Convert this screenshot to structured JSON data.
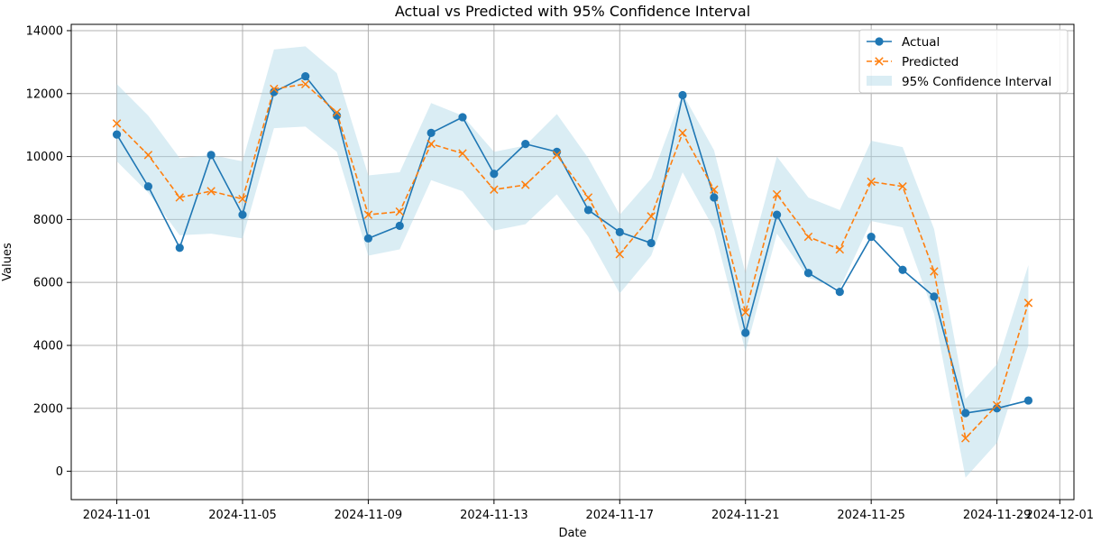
{
  "chart_data": {
    "type": "line",
    "title": "Actual vs Predicted with 95% Confidence Interval",
    "xlabel": "Date",
    "ylabel": "Values",
    "x": [
      "2024-11-01",
      "2024-11-02",
      "2024-11-03",
      "2024-11-04",
      "2024-11-05",
      "2024-11-06",
      "2024-11-07",
      "2024-11-08",
      "2024-11-09",
      "2024-11-10",
      "2024-11-11",
      "2024-11-12",
      "2024-11-13",
      "2024-11-14",
      "2024-11-15",
      "2024-11-16",
      "2024-11-17",
      "2024-11-18",
      "2024-11-19",
      "2024-11-20",
      "2024-11-21",
      "2024-11-22",
      "2024-11-23",
      "2024-11-24",
      "2024-11-25",
      "2024-11-26",
      "2024-11-27",
      "2024-11-28",
      "2024-11-29",
      "2024-11-30"
    ],
    "x_ticks": [
      "2024-11-01",
      "2024-11-05",
      "2024-11-09",
      "2024-11-13",
      "2024-11-17",
      "2024-11-21",
      "2024-11-25",
      "2024-11-29",
      "2024-12-01"
    ],
    "ylim": [
      -900,
      14200
    ],
    "y_ticks": [
      0,
      2000,
      4000,
      6000,
      8000,
      10000,
      12000,
      14000
    ],
    "grid": true,
    "legend_position": "top-right",
    "series": [
      {
        "name": "Actual",
        "color": "#1f77b4",
        "marker": "circle",
        "linestyle": "solid",
        "values": [
          10700,
          9050,
          7100,
          10050,
          8150,
          12050,
          12550,
          11300,
          7400,
          7800,
          10750,
          11250,
          9450,
          10400,
          10150,
          8300,
          7600,
          7250,
          11950,
          8700,
          4400,
          8150,
          6300,
          5700,
          7450,
          6400,
          5550,
          1850,
          2000,
          2250
        ]
      },
      {
        "name": "Predicted",
        "color": "#ff7f0e",
        "marker": "x",
        "linestyle": "dashed",
        "values": [
          11050,
          10050,
          8700,
          8900,
          8650,
          12150,
          12300,
          11400,
          8150,
          8250,
          10400,
          10100,
          8950,
          9100,
          10050,
          8700,
          6900,
          8100,
          10750,
          8950,
          5050,
          8800,
          7450,
          7050,
          9200,
          9050,
          6350,
          1050,
          2100,
          5350
        ]
      }
    ],
    "confidence_interval": {
      "name": "95% Confidence Interval",
      "color": "#add8e6",
      "lower": [
        9850,
        8850,
        7500,
        7550,
        7400,
        10900,
        10950,
        10150,
        6850,
        7050,
        9250,
        8900,
        7650,
        7850,
        8800,
        7450,
        5650,
        6850,
        9500,
        7700,
        3800,
        7550,
        6150,
        5800,
        7950,
        7750,
        5000,
        -200,
        900,
        4000
      ],
      "upper": [
        12300,
        11300,
        9950,
        10050,
        9850,
        13400,
        13500,
        12650,
        9400,
        9500,
        11700,
        11300,
        10150,
        10350,
        11350,
        9950,
        8150,
        9300,
        12000,
        10200,
        6300,
        10000,
        8700,
        8300,
        10500,
        10300,
        7700,
        2300,
        3400,
        6550
      ]
    }
  }
}
